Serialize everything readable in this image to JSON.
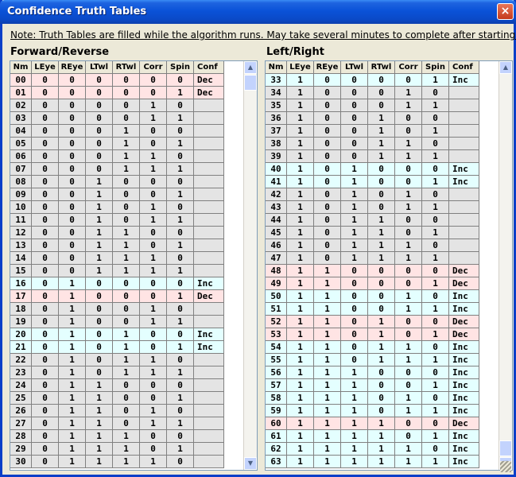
{
  "window": {
    "title": "Confidence Truth Tables",
    "close_label": "×"
  },
  "note": "Note:  Truth Tables are filled while the algorithm runs.  May take several minutes to complete after starting.",
  "columns": [
    "Nm",
    "LEye",
    "REye",
    "LTwl",
    "RTwl",
    "Corr",
    "Spin",
    "Conf"
  ],
  "left": {
    "title": "Forward/Reverse",
    "rows": [
      [
        "00",
        "0",
        "0",
        "0",
        "0",
        "0",
        "0",
        "Dec"
      ],
      [
        "01",
        "0",
        "0",
        "0",
        "0",
        "0",
        "1",
        "Dec"
      ],
      [
        "02",
        "0",
        "0",
        "0",
        "0",
        "1",
        "0",
        ""
      ],
      [
        "03",
        "0",
        "0",
        "0",
        "0",
        "1",
        "1",
        ""
      ],
      [
        "04",
        "0",
        "0",
        "0",
        "1",
        "0",
        "0",
        ""
      ],
      [
        "05",
        "0",
        "0",
        "0",
        "1",
        "0",
        "1",
        ""
      ],
      [
        "06",
        "0",
        "0",
        "0",
        "1",
        "1",
        "0",
        ""
      ],
      [
        "07",
        "0",
        "0",
        "0",
        "1",
        "1",
        "1",
        ""
      ],
      [
        "08",
        "0",
        "0",
        "1",
        "0",
        "0",
        "0",
        ""
      ],
      [
        "09",
        "0",
        "0",
        "1",
        "0",
        "0",
        "1",
        ""
      ],
      [
        "10",
        "0",
        "0",
        "1",
        "0",
        "1",
        "0",
        ""
      ],
      [
        "11",
        "0",
        "0",
        "1",
        "0",
        "1",
        "1",
        ""
      ],
      [
        "12",
        "0",
        "0",
        "1",
        "1",
        "0",
        "0",
        ""
      ],
      [
        "13",
        "0",
        "0",
        "1",
        "1",
        "0",
        "1",
        ""
      ],
      [
        "14",
        "0",
        "0",
        "1",
        "1",
        "1",
        "0",
        ""
      ],
      [
        "15",
        "0",
        "0",
        "1",
        "1",
        "1",
        "1",
        ""
      ],
      [
        "16",
        "0",
        "1",
        "0",
        "0",
        "0",
        "0",
        "Inc"
      ],
      [
        "17",
        "0",
        "1",
        "0",
        "0",
        "0",
        "1",
        "Dec"
      ],
      [
        "18",
        "0",
        "1",
        "0",
        "0",
        "1",
        "0",
        ""
      ],
      [
        "19",
        "0",
        "1",
        "0",
        "0",
        "1",
        "1",
        ""
      ],
      [
        "20",
        "0",
        "1",
        "0",
        "1",
        "0",
        "0",
        "Inc"
      ],
      [
        "21",
        "0",
        "1",
        "0",
        "1",
        "0",
        "1",
        "Inc"
      ],
      [
        "22",
        "0",
        "1",
        "0",
        "1",
        "1",
        "0",
        ""
      ],
      [
        "23",
        "0",
        "1",
        "0",
        "1",
        "1",
        "1",
        ""
      ],
      [
        "24",
        "0",
        "1",
        "1",
        "0",
        "0",
        "0",
        ""
      ],
      [
        "25",
        "0",
        "1",
        "1",
        "0",
        "0",
        "1",
        ""
      ],
      [
        "26",
        "0",
        "1",
        "1",
        "0",
        "1",
        "0",
        ""
      ],
      [
        "27",
        "0",
        "1",
        "1",
        "0",
        "1",
        "1",
        ""
      ],
      [
        "28",
        "0",
        "1",
        "1",
        "1",
        "0",
        "0",
        ""
      ],
      [
        "29",
        "0",
        "1",
        "1",
        "1",
        "0",
        "1",
        ""
      ],
      [
        "30",
        "0",
        "1",
        "1",
        "1",
        "1",
        "0",
        ""
      ]
    ]
  },
  "right": {
    "title": "Left/Right",
    "rows": [
      [
        "33",
        "1",
        "0",
        "0",
        "0",
        "0",
        "1",
        "Inc"
      ],
      [
        "34",
        "1",
        "0",
        "0",
        "0",
        "1",
        "0",
        ""
      ],
      [
        "35",
        "1",
        "0",
        "0",
        "0",
        "1",
        "1",
        ""
      ],
      [
        "36",
        "1",
        "0",
        "0",
        "1",
        "0",
        "0",
        ""
      ],
      [
        "37",
        "1",
        "0",
        "0",
        "1",
        "0",
        "1",
        ""
      ],
      [
        "38",
        "1",
        "0",
        "0",
        "1",
        "1",
        "0",
        ""
      ],
      [
        "39",
        "1",
        "0",
        "0",
        "1",
        "1",
        "1",
        ""
      ],
      [
        "40",
        "1",
        "0",
        "1",
        "0",
        "0",
        "0",
        "Inc"
      ],
      [
        "41",
        "1",
        "0",
        "1",
        "0",
        "0",
        "1",
        "Inc"
      ],
      [
        "42",
        "1",
        "0",
        "1",
        "0",
        "1",
        "0",
        ""
      ],
      [
        "43",
        "1",
        "0",
        "1",
        "0",
        "1",
        "1",
        ""
      ],
      [
        "44",
        "1",
        "0",
        "1",
        "1",
        "0",
        "0",
        ""
      ],
      [
        "45",
        "1",
        "0",
        "1",
        "1",
        "0",
        "1",
        ""
      ],
      [
        "46",
        "1",
        "0",
        "1",
        "1",
        "1",
        "0",
        ""
      ],
      [
        "47",
        "1",
        "0",
        "1",
        "1",
        "1",
        "1",
        ""
      ],
      [
        "48",
        "1",
        "1",
        "0",
        "0",
        "0",
        "0",
        "Dec"
      ],
      [
        "49",
        "1",
        "1",
        "0",
        "0",
        "0",
        "1",
        "Dec"
      ],
      [
        "50",
        "1",
        "1",
        "0",
        "0",
        "1",
        "0",
        "Inc"
      ],
      [
        "51",
        "1",
        "1",
        "0",
        "0",
        "1",
        "1",
        "Inc"
      ],
      [
        "52",
        "1",
        "1",
        "0",
        "1",
        "0",
        "0",
        "Dec"
      ],
      [
        "53",
        "1",
        "1",
        "0",
        "1",
        "0",
        "1",
        "Dec"
      ],
      [
        "54",
        "1",
        "1",
        "0",
        "1",
        "1",
        "0",
        "Inc"
      ],
      [
        "55",
        "1",
        "1",
        "0",
        "1",
        "1",
        "1",
        "Inc"
      ],
      [
        "56",
        "1",
        "1",
        "1",
        "0",
        "0",
        "0",
        "Inc"
      ],
      [
        "57",
        "1",
        "1",
        "1",
        "0",
        "0",
        "1",
        "Inc"
      ],
      [
        "58",
        "1",
        "1",
        "1",
        "0",
        "1",
        "0",
        "Inc"
      ],
      [
        "59",
        "1",
        "1",
        "1",
        "0",
        "1",
        "1",
        "Inc"
      ],
      [
        "60",
        "1",
        "1",
        "1",
        "1",
        "0",
        "0",
        "Dec"
      ],
      [
        "61",
        "1",
        "1",
        "1",
        "1",
        "0",
        "1",
        "Inc"
      ],
      [
        "62",
        "1",
        "1",
        "1",
        "1",
        "1",
        "0",
        "Inc"
      ],
      [
        "63",
        "1",
        "1",
        "1",
        "1",
        "1",
        "1",
        "Inc"
      ]
    ]
  },
  "scroll_arrows": {
    "up": "▲",
    "down": "▼"
  },
  "colors": {
    "dec_row": "#ffe4e4",
    "inc_row": "#e4ffff",
    "empty_row": "#e4e4e4",
    "title_bar": "#0a52d8"
  }
}
